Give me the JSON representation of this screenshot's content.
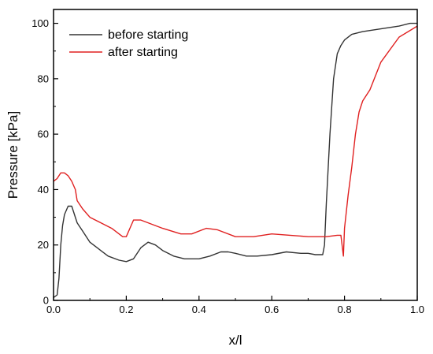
{
  "chart_data": {
    "type": "line",
    "title": "",
    "xlabel": "x/l",
    "ylabel": "Pressure [kPa]",
    "xlim": [
      0.0,
      1.0
    ],
    "ylim": [
      0,
      105
    ],
    "x_ticks": [
      "0.0",
      "0.2",
      "0.4",
      "0.6",
      "0.8",
      "1.0"
    ],
    "y_ticks": [
      "0",
      "20",
      "40",
      "60",
      "80",
      "100"
    ],
    "grid": false,
    "legend_position": "top-left",
    "series": [
      {
        "name": "before starting",
        "color": "#333333",
        "x": [
          0.0,
          0.01,
          0.015,
          0.02,
          0.025,
          0.03,
          0.04,
          0.05,
          0.055,
          0.06,
          0.065,
          0.07,
          0.08,
          0.1,
          0.12,
          0.15,
          0.18,
          0.2,
          0.22,
          0.24,
          0.26,
          0.28,
          0.3,
          0.33,
          0.36,
          0.4,
          0.43,
          0.46,
          0.48,
          0.5,
          0.53,
          0.56,
          0.6,
          0.64,
          0.68,
          0.7,
          0.72,
          0.74,
          0.745,
          0.75,
          0.76,
          0.77,
          0.78,
          0.79,
          0.8,
          0.82,
          0.85,
          0.9,
          0.95,
          0.98,
          1.0
        ],
        "y": [
          1,
          2,
          8,
          20,
          27,
          31,
          34,
          34,
          32,
          30,
          28,
          27,
          25,
          21,
          19,
          16,
          14.5,
          14,
          15,
          19,
          21,
          20,
          18,
          16,
          15,
          15,
          16,
          17.5,
          17.5,
          17,
          16,
          16,
          16.5,
          17.5,
          17,
          17,
          16.5,
          16.5,
          20,
          35,
          60,
          80,
          89,
          92,
          94,
          96,
          97,
          98,
          99,
          100,
          100
        ]
      },
      {
        "name": "after starting",
        "color": "#e02020",
        "x": [
          0.0,
          0.01,
          0.02,
          0.03,
          0.04,
          0.05,
          0.06,
          0.065,
          0.07,
          0.08,
          0.1,
          0.13,
          0.16,
          0.19,
          0.2,
          0.21,
          0.22,
          0.24,
          0.26,
          0.3,
          0.35,
          0.38,
          0.42,
          0.45,
          0.5,
          0.55,
          0.6,
          0.65,
          0.7,
          0.75,
          0.78,
          0.79,
          0.797,
          0.8,
          0.81,
          0.82,
          0.83,
          0.84,
          0.85,
          0.87,
          0.9,
          0.95,
          1.0
        ],
        "y": [
          43,
          44,
          46,
          46,
          45,
          43,
          40,
          36,
          35,
          33,
          30,
          28,
          26,
          23,
          23,
          26,
          29,
          29,
          28,
          26,
          24,
          24,
          26,
          25.5,
          23,
          23,
          24,
          23.5,
          23,
          23,
          23.5,
          23.5,
          16,
          26,
          38,
          48,
          60,
          68,
          72,
          76,
          86,
          95,
          99
        ]
      }
    ]
  }
}
